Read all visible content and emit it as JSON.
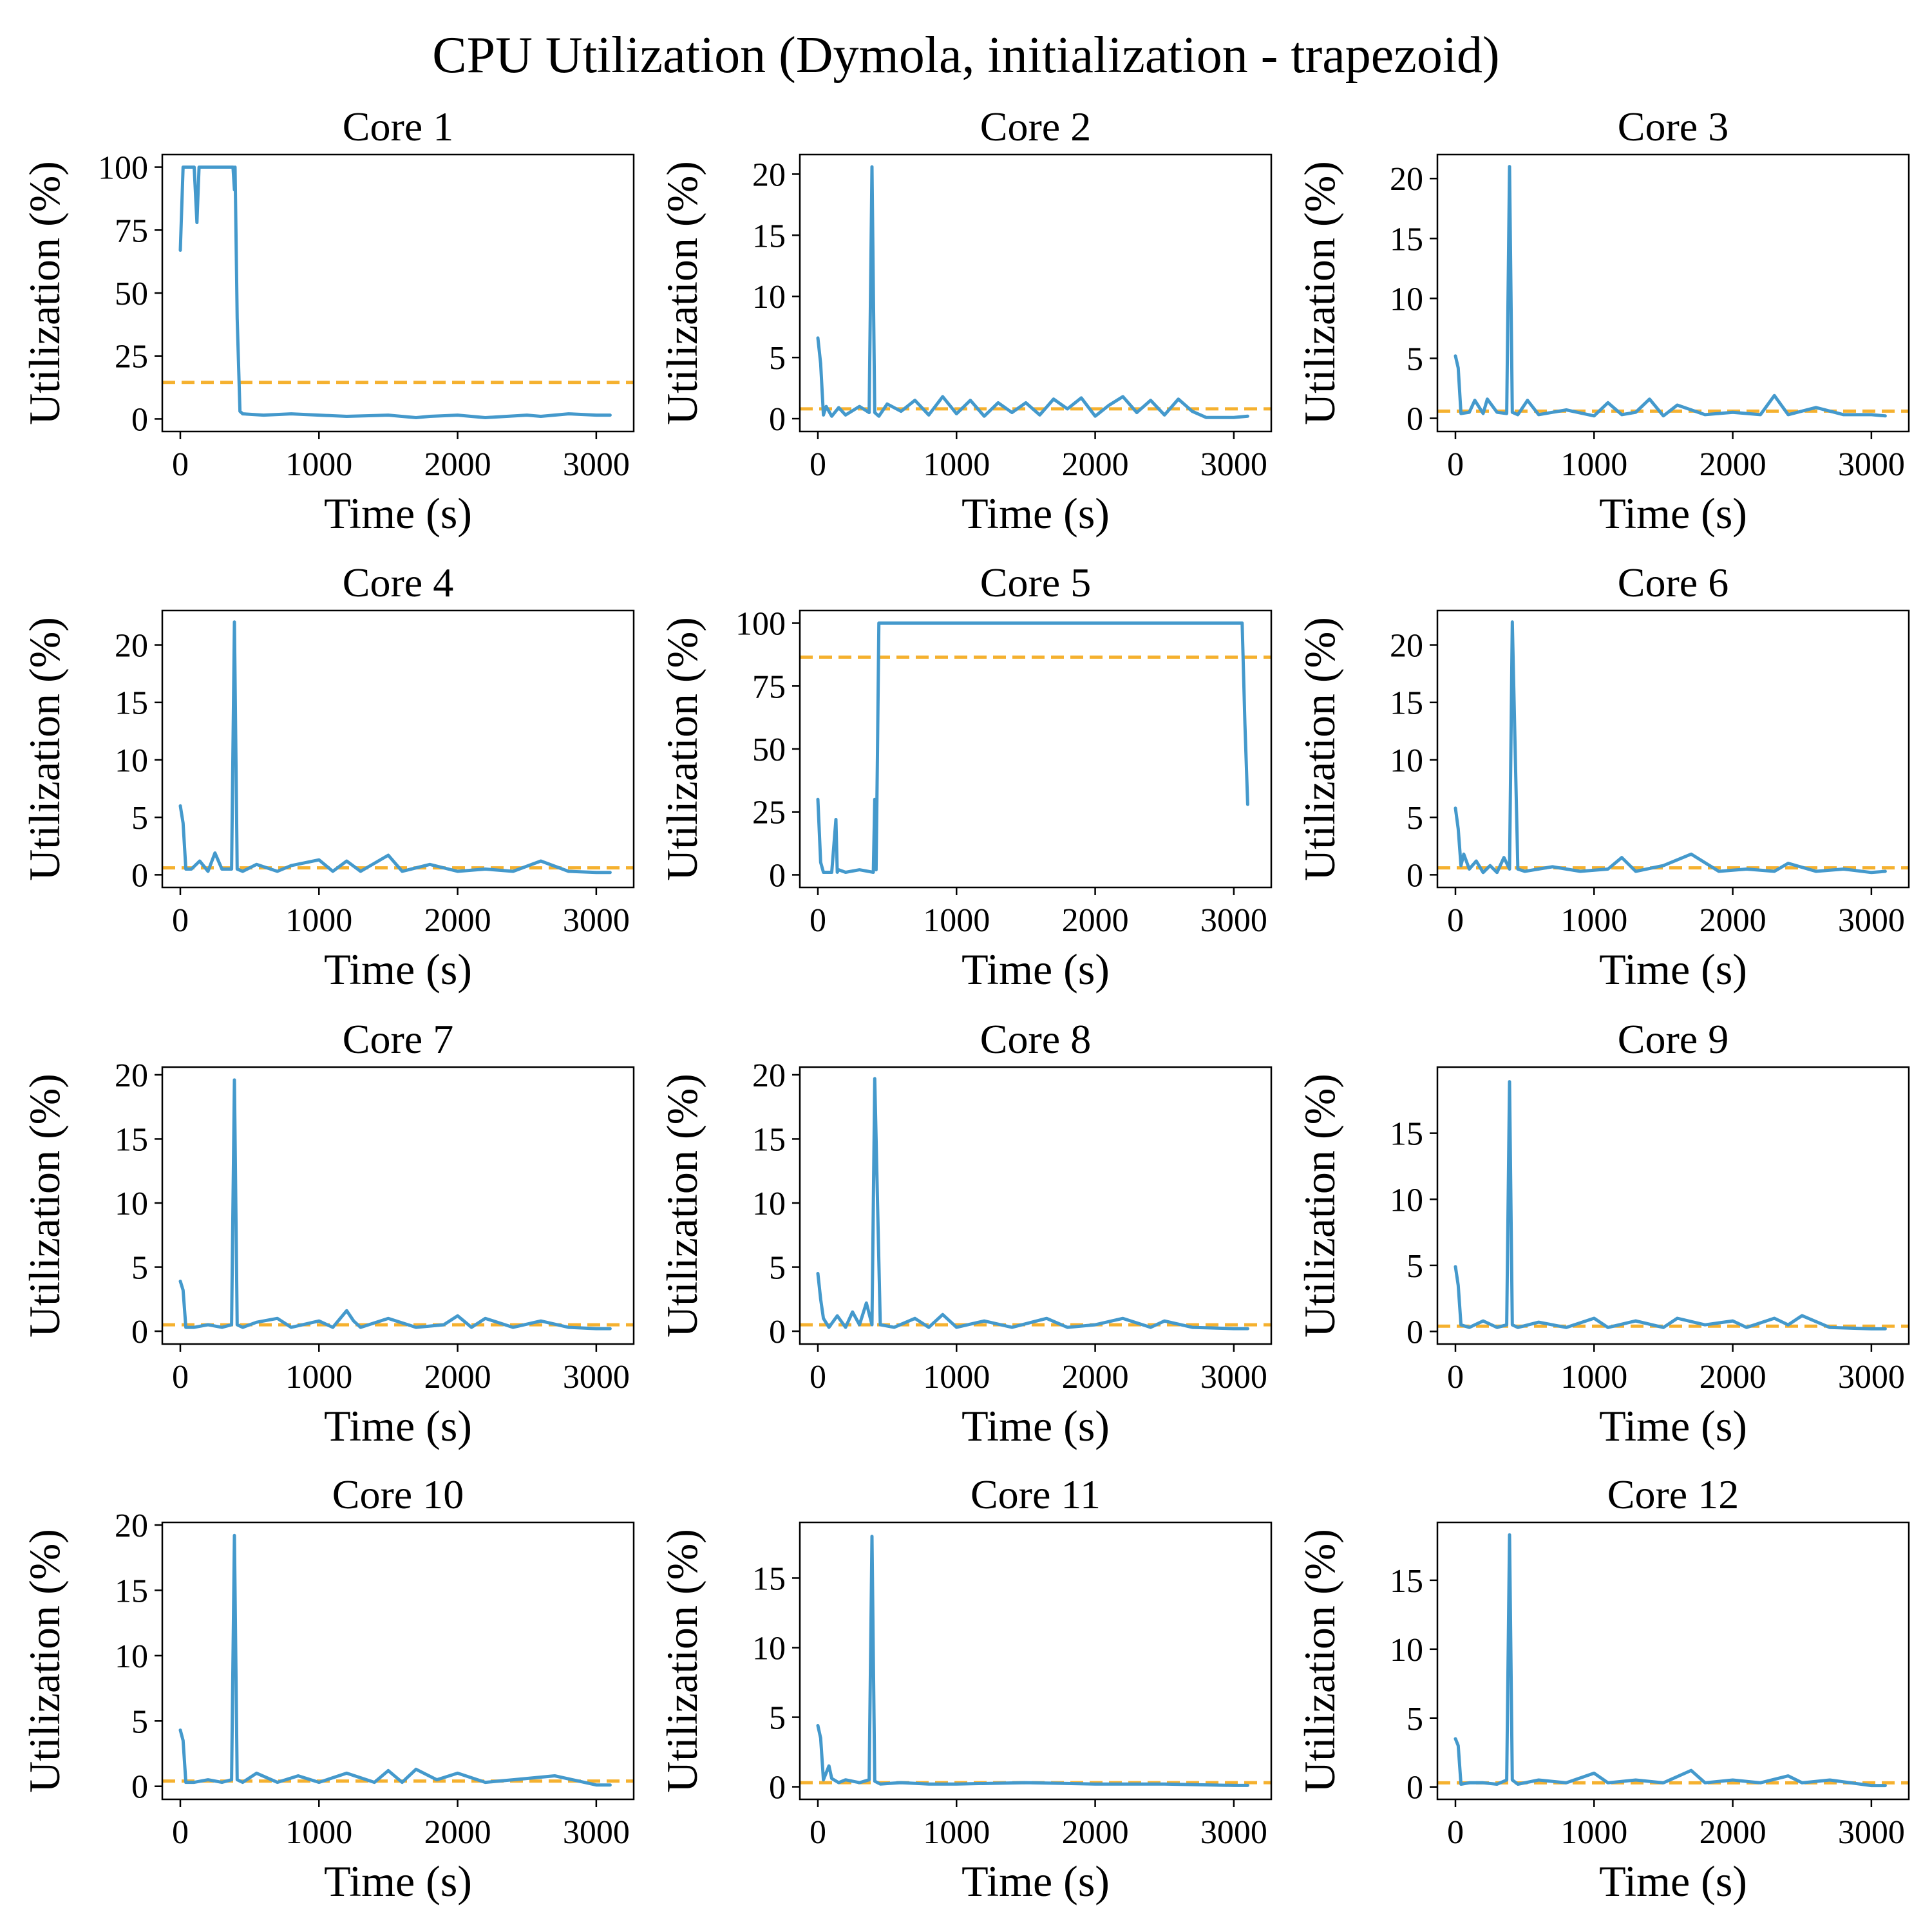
{
  "suptitle": "CPU Utilization (Dymola, initialization - trapezoid)",
  "colors": {
    "series": "#4499cc",
    "mean_line": "#f5b12f",
    "axes": "#000000",
    "background": "#ffffff"
  },
  "chart_data": [
    {
      "type": "line",
      "title": "Core 1",
      "xlabel": "Time (s)",
      "ylabel": "Utilization (%)",
      "xlim": [
        -130,
        3270
      ],
      "ylim": [
        -5,
        105
      ],
      "xticks": [
        0,
        1000,
        2000,
        3000
      ],
      "yticks": [
        0,
        25,
        50,
        75,
        100
      ],
      "mean": 14.5,
      "x": [
        0,
        20,
        100,
        120,
        135,
        140,
        160,
        380,
        390,
        395,
        410,
        430,
        450,
        600,
        800,
        1000,
        1200,
        1500,
        1700,
        1800,
        2000,
        2200,
        2500,
        2600,
        2800,
        3000,
        3100
      ],
      "y": [
        67,
        100,
        100,
        78,
        100,
        100,
        100,
        100,
        91,
        100,
        40,
        3,
        2,
        1.5,
        2,
        1.5,
        1,
        1.5,
        0.5,
        1,
        1.5,
        0.5,
        1.5,
        1,
        2,
        1.5,
        1.5
      ]
    },
    {
      "type": "line",
      "title": "Core 2",
      "xlabel": "Time (s)",
      "ylabel": "Utilization (%)",
      "xlim": [
        -130,
        3270
      ],
      "ylim": [
        -1.05,
        21.6
      ],
      "xticks": [
        0,
        1000,
        2000,
        3000
      ],
      "yticks": [
        0,
        5,
        10,
        15,
        20
      ],
      "mean": 0.8,
      "x": [
        0,
        20,
        40,
        60,
        100,
        150,
        200,
        300,
        370,
        390,
        410,
        440,
        500,
        600,
        700,
        800,
        900,
        1000,
        1100,
        1200,
        1300,
        1400,
        1500,
        1600,
        1700,
        1800,
        1900,
        2000,
        2100,
        2200,
        2300,
        2400,
        2500,
        2600,
        2700,
        2800,
        3000,
        3100
      ],
      "y": [
        6.6,
        4.5,
        0.3,
        1.0,
        0.2,
        0.9,
        0.3,
        1.0,
        0.5,
        20.6,
        0.5,
        0.2,
        1.2,
        0.6,
        1.5,
        0.3,
        1.8,
        0.4,
        1.5,
        0.2,
        1.3,
        0.5,
        1.3,
        0.3,
        1.6,
        0.8,
        1.7,
        0.2,
        1.1,
        1.8,
        0.5,
        1.5,
        0.3,
        1.6,
        0.6,
        0.1,
        0.1,
        0.2
      ]
    },
    {
      "type": "line",
      "title": "Core 3",
      "xlabel": "Time (s)",
      "ylabel": "Utilization (%)",
      "xlim": [
        -130,
        3270
      ],
      "ylim": [
        -1.1,
        22.0
      ],
      "xticks": [
        0,
        1000,
        2000,
        3000
      ],
      "yticks": [
        0,
        5,
        10,
        15,
        20
      ],
      "mean": 0.6,
      "x": [
        0,
        20,
        40,
        100,
        140,
        200,
        230,
        300,
        370,
        390,
        410,
        450,
        520,
        600,
        800,
        1000,
        1100,
        1200,
        1300,
        1400,
        1500,
        1600,
        1800,
        2000,
        2200,
        2300,
        2400,
        2600,
        2800,
        3000,
        3100
      ],
      "y": [
        5.2,
        4.2,
        0.4,
        0.5,
        1.5,
        0.4,
        1.6,
        0.5,
        0.4,
        21.0,
        0.5,
        0.3,
        1.5,
        0.3,
        0.7,
        0.2,
        1.3,
        0.3,
        0.5,
        1.6,
        0.2,
        1.1,
        0.3,
        0.5,
        0.3,
        1.9,
        0.3,
        0.9,
        0.3,
        0.3,
        0.2
      ]
    },
    {
      "type": "line",
      "title": "Core 4",
      "xlabel": "Time (s)",
      "ylabel": "Utilization (%)",
      "xlim": [
        -130,
        3270
      ],
      "ylim": [
        -1.1,
        23.0
      ],
      "xticks": [
        0,
        1000,
        2000,
        3000
      ],
      "yticks": [
        0,
        5,
        10,
        15,
        20
      ],
      "mean": 0.6,
      "x": [
        0,
        20,
        40,
        80,
        140,
        200,
        250,
        300,
        370,
        390,
        410,
        450,
        550,
        700,
        800,
        1000,
        1100,
        1200,
        1300,
        1500,
        1600,
        1800,
        2000,
        2200,
        2400,
        2600,
        2800,
        3000,
        3100
      ],
      "y": [
        6.0,
        4.5,
        0.5,
        0.5,
        1.2,
        0.3,
        1.9,
        0.5,
        0.5,
        22.0,
        0.5,
        0.3,
        0.9,
        0.3,
        0.8,
        1.3,
        0.3,
        1.2,
        0.3,
        1.7,
        0.3,
        0.9,
        0.3,
        0.5,
        0.3,
        1.2,
        0.3,
        0.2,
        0.2
      ]
    },
    {
      "type": "line",
      "title": "Core 5",
      "xlabel": "Time (s)",
      "ylabel": "Utilization (%)",
      "xlim": [
        -130,
        3270
      ],
      "ylim": [
        -5,
        105
      ],
      "xticks": [
        0,
        1000,
        2000,
        3000
      ],
      "yticks": [
        0,
        25,
        50,
        75,
        100
      ],
      "mean": 86.5,
      "x": [
        0,
        20,
        40,
        100,
        130,
        140,
        150,
        200,
        300,
        400,
        410,
        420,
        430,
        440,
        600,
        1000,
        2000,
        3000,
        3060,
        3080,
        3100
      ],
      "y": [
        30,
        5,
        1,
        1,
        22,
        1,
        2,
        1,
        2,
        1,
        30,
        2,
        50,
        100,
        100,
        100,
        100,
        100,
        100,
        60,
        28
      ]
    },
    {
      "type": "line",
      "title": "Core 6",
      "xlabel": "Time (s)",
      "ylabel": "Utilization (%)",
      "xlim": [
        -130,
        3270
      ],
      "ylim": [
        -1.1,
        23.0
      ],
      "xticks": [
        0,
        1000,
        2000,
        3000
      ],
      "yticks": [
        0,
        5,
        10,
        15,
        20
      ],
      "mean": 0.6,
      "x": [
        0,
        20,
        40,
        60,
        100,
        150,
        200,
        250,
        300,
        350,
        390,
        410,
        450,
        500,
        700,
        900,
        1100,
        1200,
        1300,
        1500,
        1700,
        1900,
        2100,
        2300,
        2400,
        2600,
        2800,
        3000,
        3100
      ],
      "y": [
        5.8,
        4.0,
        0.8,
        1.8,
        0.5,
        1.2,
        0.2,
        0.8,
        0.2,
        1.5,
        0.5,
        22.0,
        0.5,
        0.3,
        0.7,
        0.3,
        0.5,
        1.5,
        0.3,
        0.8,
        1.8,
        0.3,
        0.5,
        0.3,
        1.0,
        0.3,
        0.5,
        0.2,
        0.3
      ]
    },
    {
      "type": "line",
      "title": "Core 7",
      "xlabel": "Time (s)",
      "ylabel": "Utilization (%)",
      "xlim": [
        -130,
        3270
      ],
      "ylim": [
        -1.0,
        20.6
      ],
      "xticks": [
        0,
        1000,
        2000,
        3000
      ],
      "yticks": [
        0,
        5,
        10,
        15,
        20
      ],
      "mean": 0.5,
      "x": [
        0,
        20,
        40,
        100,
        200,
        300,
        370,
        390,
        410,
        450,
        550,
        700,
        800,
        1000,
        1100,
        1200,
        1250,
        1300,
        1500,
        1700,
        1900,
        2000,
        2100,
        2200,
        2400,
        2600,
        2800,
        3000,
        3100
      ],
      "y": [
        3.9,
        3.2,
        0.3,
        0.3,
        0.5,
        0.3,
        0.5,
        19.6,
        0.5,
        0.3,
        0.7,
        1.0,
        0.3,
        0.8,
        0.3,
        1.6,
        0.8,
        0.3,
        1.0,
        0.3,
        0.5,
        1.2,
        0.3,
        1.0,
        0.3,
        0.8,
        0.3,
        0.2,
        0.2
      ]
    },
    {
      "type": "line",
      "title": "Core 8",
      "xlabel": "Time (s)",
      "ylabel": "Utilization (%)",
      "xlim": [
        -130,
        3270
      ],
      "ylim": [
        -1.0,
        20.6
      ],
      "xticks": [
        0,
        1000,
        2000,
        3000
      ],
      "yticks": [
        0,
        5,
        10,
        15,
        20
      ],
      "mean": 0.5,
      "x": [
        0,
        20,
        40,
        80,
        140,
        200,
        250,
        300,
        350,
        390,
        410,
        450,
        550,
        700,
        800,
        900,
        1000,
        1200,
        1400,
        1650,
        1800,
        2000,
        2200,
        2400,
        2500,
        2700,
        3000,
        3100
      ],
      "y": [
        4.5,
        2.5,
        1.0,
        0.3,
        1.2,
        0.3,
        1.5,
        0.5,
        2.2,
        0.5,
        19.7,
        0.5,
        0.3,
        1.0,
        0.3,
        1.3,
        0.3,
        0.8,
        0.3,
        1.0,
        0.3,
        0.5,
        1.0,
        0.3,
        0.8,
        0.3,
        0.2,
        0.2
      ]
    },
    {
      "type": "line",
      "title": "Core 9",
      "xlabel": "Time (s)",
      "ylabel": "Utilization (%)",
      "xlim": [
        -130,
        3270
      ],
      "ylim": [
        -0.95,
        20.0
      ],
      "xticks": [
        0,
        1000,
        2000,
        3000
      ],
      "yticks": [
        0,
        5,
        10,
        15
      ],
      "mean": 0.4,
      "x": [
        0,
        20,
        40,
        100,
        200,
        300,
        370,
        390,
        410,
        450,
        600,
        800,
        1000,
        1100,
        1300,
        1500,
        1600,
        1800,
        2000,
        2100,
        2300,
        2400,
        2500,
        2700,
        3000,
        3100
      ],
      "y": [
        4.9,
        3.5,
        0.5,
        0.3,
        0.8,
        0.3,
        0.5,
        18.9,
        0.5,
        0.3,
        0.7,
        0.3,
        1.0,
        0.3,
        0.8,
        0.3,
        1.0,
        0.5,
        0.8,
        0.3,
        1.0,
        0.5,
        1.2,
        0.3,
        0.2,
        0.2
      ]
    },
    {
      "type": "line",
      "title": "Core 10",
      "xlabel": "Time (s)",
      "ylabel": "Utilization (%)",
      "xlim": [
        -130,
        3270
      ],
      "ylim": [
        -1.0,
        20.2
      ],
      "xticks": [
        0,
        1000,
        2000,
        3000
      ],
      "yticks": [
        0,
        5,
        10,
        15,
        20
      ],
      "mean": 0.4,
      "x": [
        0,
        20,
        40,
        100,
        200,
        300,
        370,
        390,
        410,
        450,
        550,
        700,
        850,
        1000,
        1200,
        1400,
        1500,
        1600,
        1700,
        1850,
        2000,
        2200,
        2400,
        2700,
        3000,
        3100
      ],
      "y": [
        4.3,
        3.5,
        0.3,
        0.3,
        0.5,
        0.3,
        0.5,
        19.2,
        0.5,
        0.3,
        1.0,
        0.3,
        0.8,
        0.3,
        1.0,
        0.3,
        1.2,
        0.3,
        1.3,
        0.5,
        1.0,
        0.3,
        0.5,
        0.8,
        0.1,
        0.1
      ]
    },
    {
      "type": "line",
      "title": "Core 11",
      "xlabel": "Time (s)",
      "ylabel": "Utilization (%)",
      "xlim": [
        -130,
        3270
      ],
      "ylim": [
        -0.9,
        19.0
      ],
      "xticks": [
        0,
        1000,
        2000,
        3000
      ],
      "yticks": [
        0,
        5,
        10,
        15
      ],
      "mean": 0.3,
      "x": [
        0,
        20,
        40,
        80,
        100,
        150,
        200,
        300,
        370,
        390,
        410,
        450,
        600,
        800,
        1000,
        1500,
        2000,
        2500,
        3000,
        3100
      ],
      "y": [
        4.4,
        3.5,
        0.5,
        1.5,
        0.6,
        0.3,
        0.5,
        0.3,
        0.5,
        18.0,
        0.4,
        0.2,
        0.3,
        0.2,
        0.2,
        0.3,
        0.2,
        0.2,
        0.1,
        0.1
      ]
    },
    {
      "type": "line",
      "title": "Core 12",
      "xlabel": "Time (s)",
      "ylabel": "Utilization (%)",
      "xlim": [
        -130,
        3270
      ],
      "ylim": [
        -0.9,
        19.2
      ],
      "xticks": [
        0,
        1000,
        2000,
        3000
      ],
      "yticks": [
        0,
        5,
        10,
        15
      ],
      "mean": 0.3,
      "x": [
        0,
        20,
        40,
        100,
        200,
        300,
        370,
        390,
        410,
        450,
        600,
        800,
        1000,
        1100,
        1300,
        1500,
        1700,
        1800,
        2000,
        2200,
        2400,
        2500,
        2700,
        3000,
        3100
      ],
      "y": [
        3.5,
        3.0,
        0.2,
        0.3,
        0.3,
        0.2,
        0.5,
        18.3,
        0.5,
        0.2,
        0.5,
        0.3,
        1.0,
        0.3,
        0.5,
        0.3,
        1.2,
        0.3,
        0.5,
        0.3,
        0.8,
        0.3,
        0.5,
        0.1,
        0.1
      ]
    }
  ]
}
